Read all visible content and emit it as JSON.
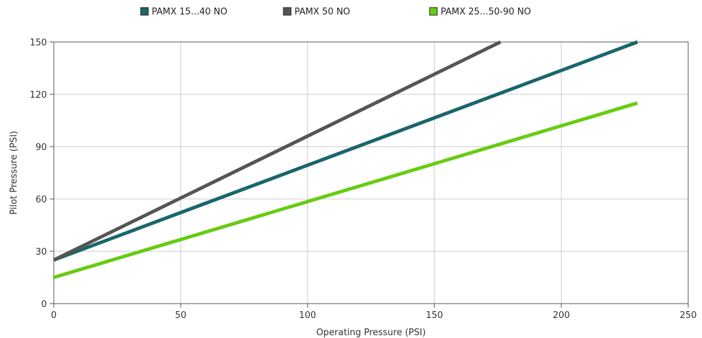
{
  "chart_data": {
    "type": "line",
    "xlabel": "Operating Pressure (PSI)",
    "ylabel": "Pilot Pressure (PSI)",
    "xlim": [
      0,
      250
    ],
    "ylim": [
      0,
      150
    ],
    "x_ticks": [
      "0",
      "50",
      "100",
      "150",
      "200",
      "250"
    ],
    "y_ticks": [
      "0",
      "30",
      "60",
      "90",
      "120",
      "150"
    ],
    "grid": true,
    "legend_position": "top",
    "series": [
      {
        "name": "PAMX 15...40 NO",
        "color": "#19666b",
        "x": [
          0,
          230
        ],
        "y": [
          25,
          150
        ]
      },
      {
        "name": "PAMX 50 NO",
        "color": "#555555",
        "x": [
          0,
          176
        ],
        "y": [
          25,
          150
        ]
      },
      {
        "name": "PAMX 25...50-90 NO",
        "color": "#66cc11",
        "x": [
          0,
          230
        ],
        "y": [
          15,
          115
        ]
      }
    ]
  }
}
